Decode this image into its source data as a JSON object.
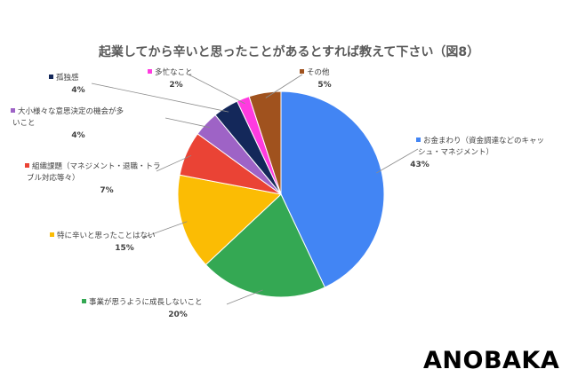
{
  "chart_data": {
    "type": "pie",
    "title": "起業してから辛いと思ったことがあるとすれば教えて下さい（図8）",
    "start_angle_deg": 0,
    "direction": "clockwise",
    "slices": [
      {
        "label_lines": [
          "お金まわり（資金調達などのキャッ",
          "シュ・マネジメント）"
        ],
        "value": 43,
        "pct_label": "43%",
        "color": "#4285f4"
      },
      {
        "label_lines": [
          "事業が思うように成長しないこと"
        ],
        "value": 20,
        "pct_label": "20%",
        "color": "#34a853"
      },
      {
        "label_lines": [
          "特に辛いと思ったことはない"
        ],
        "value": 15,
        "pct_label": "15%",
        "color": "#fbbc04"
      },
      {
        "label_lines": [
          "組織課題（マネジメント・退職・トラ",
          "ブル対応等々）"
        ],
        "value": 7,
        "pct_label": "7%",
        "color": "#ea4335"
      },
      {
        "label_lines": [
          "大小様々な意思決定の機会が多",
          "いこと"
        ],
        "value": 4,
        "pct_label": "4%",
        "color": "#9e63c6"
      },
      {
        "label_lines": [
          "孤独感"
        ],
        "value": 4,
        "pct_label": "4%",
        "color": "#14285a"
      },
      {
        "label_lines": [
          "多忙なこと"
        ],
        "value": 2,
        "pct_label": "2%",
        "color": "#ff3be0"
      },
      {
        "label_lines": [
          "その他"
        ],
        "value": 5,
        "pct_label": "5%",
        "color": "#a0521e"
      }
    ]
  },
  "brand": {
    "logo_text": "ANOBAKA"
  }
}
